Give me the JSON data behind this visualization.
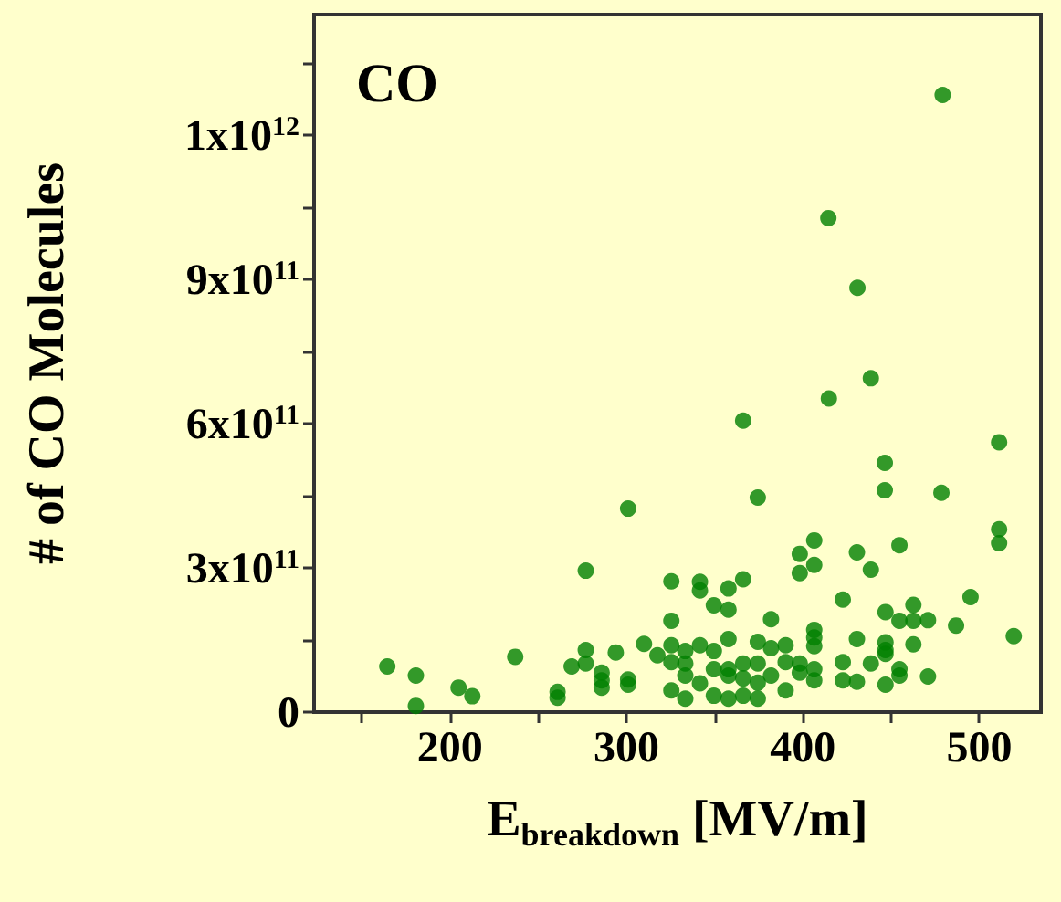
{
  "chart_data": {
    "type": "scatter",
    "title": "CO",
    "xlabel": "E$_{breakdown}$ [MV/m]",
    "ylabel": "# of CO Molecules",
    "xlim": [
      123,
      535
    ],
    "ylim": [
      0,
      1450000000000.0
    ],
    "xticks": [
      {
        "value": 150,
        "label": null
      },
      200,
      {
        "value": 250,
        "label": null
      },
      300,
      {
        "value": 350,
        "label": null
      },
      400,
      {
        "value": 450,
        "label": null
      },
      500
    ],
    "yticks": [
      {
        "value": 0,
        "label": "0"
      },
      {
        "value": 150000000000.0,
        "label": null
      },
      {
        "value": 300000000000.0,
        "label": "3x10$^{11}$"
      },
      {
        "value": 450000000000.0,
        "label": null
      },
      {
        "value": 600000000000.0,
        "label": "6x10$^{11}$"
      },
      {
        "value": 750000000000.0,
        "label": null
      },
      {
        "value": 900000000000.0,
        "label": "9x10$^{11}$"
      },
      {
        "value": 1050000000000.0,
        "label": null
      },
      {
        "value": 1200000000000.0,
        "label": "1x10$^{12}$"
      },
      {
        "value": 1350000000000.0,
        "label": null
      }
    ],
    "grid": false,
    "marker": "circle",
    "series": [
      {
        "color": "#008000",
        "x": [
          164.5,
          180.7,
          180.7,
          204.9,
          212.7,
          237,
          261,
          261,
          269,
          277,
          277,
          277,
          286,
          286,
          286,
          294,
          301,
          301,
          301,
          310,
          317.6,
          366.2,
          414.8,
          438.6,
          374.5,
          446.5,
          446.5,
          478.6,
          511.3,
          511.3,
          511.3,
          406.5,
          398.3,
          406.5,
          398.3,
          430.7,
          454.8,
          438.6,
          325.5,
          341.7,
          341.7,
          357.9,
          366.2,
          349.6,
          357.9,
          325.5,
          382.0,
          422.7,
          495.1,
          446.9,
          462.7,
          454.8,
          462.7,
          471.0,
          486.9,
          519.6,
          406.5,
          406.5,
          406.5,
          430.7,
          446.9,
          446.9,
          446.9,
          462.7,
          325.5,
          325.5,
          333.4,
          333.4,
          333.4,
          341.7,
          341.7,
          349.6,
          349.6,
          357.9,
          357.9,
          357.9,
          366.2,
          366.2,
          374.5,
          374.5,
          374.5,
          382.0,
          382.0,
          390.3,
          390.3,
          390.3,
          398.3,
          398.3,
          406.5,
          406.5,
          422.7,
          422.7,
          430.7,
          438.6,
          446.9,
          454.8,
          454.8,
          471.0,
          325.5,
          333.4,
          349.6,
          357.9,
          366.2,
          374.5,
          479.3,
          414.5,
          431
        ],
        "values": [
          95000000000.0,
          76000000000.0,
          13000000000.0,
          51000000000.0,
          33000000000.0,
          115000000000.0,
          42000000000.0,
          30000000000.0,
          95000000000.0,
          294000000000.0,
          129000000000.0,
          101000000000.0,
          82000000000.0,
          66000000000.0,
          51000000000.0,
          124000000000.0,
          423000000000.0,
          68000000000.0,
          57000000000.0,
          142000000000.0,
          118000000000.0,
          606000000000.0,
          652000000000.0,
          694000000000.0,
          446000000000.0,
          518000000000.0,
          461000000000.0,
          456000000000.0,
          561000000000.0,
          380000000000.0,
          351000000000.0,
          357000000000.0,
          329000000000.0,
          306000000000.0,
          289000000000.0,
          332000000000.0,
          347000000000.0,
          296000000000.0,
          272000000000.0,
          271000000000.0,
          253000000000.0,
          257000000000.0,
          276000000000.0,
          222000000000.0,
          213000000000.0,
          190000000000.0,
          193000000000.0,
          234000000000.0,
          239000000000.0,
          208000000000.0,
          223000000000.0,
          190000000000.0,
          190000000000.0,
          191000000000.0,
          180000000000.0,
          158000000000.0,
          171000000000.0,
          155000000000.0,
          137000000000.0,
          152000000000.0,
          145000000000.0,
          129000000000.0,
          121000000000.0,
          141000000000.0,
          139000000000.0,
          104000000000.0,
          127000000000.0,
          101000000000.0,
          76000000000.0,
          139000000000.0,
          60000000000.0,
          127000000000.0,
          89000000000.0,
          152000000000.0,
          89000000000.0,
          76000000000.0,
          101000000000.0,
          70000000000.0,
          146000000000.0,
          101000000000.0,
          61000000000.0,
          133000000000.0,
          76000000000.0,
          139000000000.0,
          104000000000.0,
          45000000000.0,
          101000000000.0,
          82000000000.0,
          89000000000.0,
          66000000000.0,
          104000000000.0,
          66000000000.0,
          63000000000.0,
          101000000000.0,
          57000000000.0,
          89000000000.0,
          76000000000.0,
          74000000000.0,
          45000000000.0,
          28000000000.0,
          34000000000.0,
          28000000000.0,
          34000000000.0,
          28000000000.0,
          1283000000000.0,
          1027000000000.0,
          882000000000.0
        ]
      }
    ]
  }
}
